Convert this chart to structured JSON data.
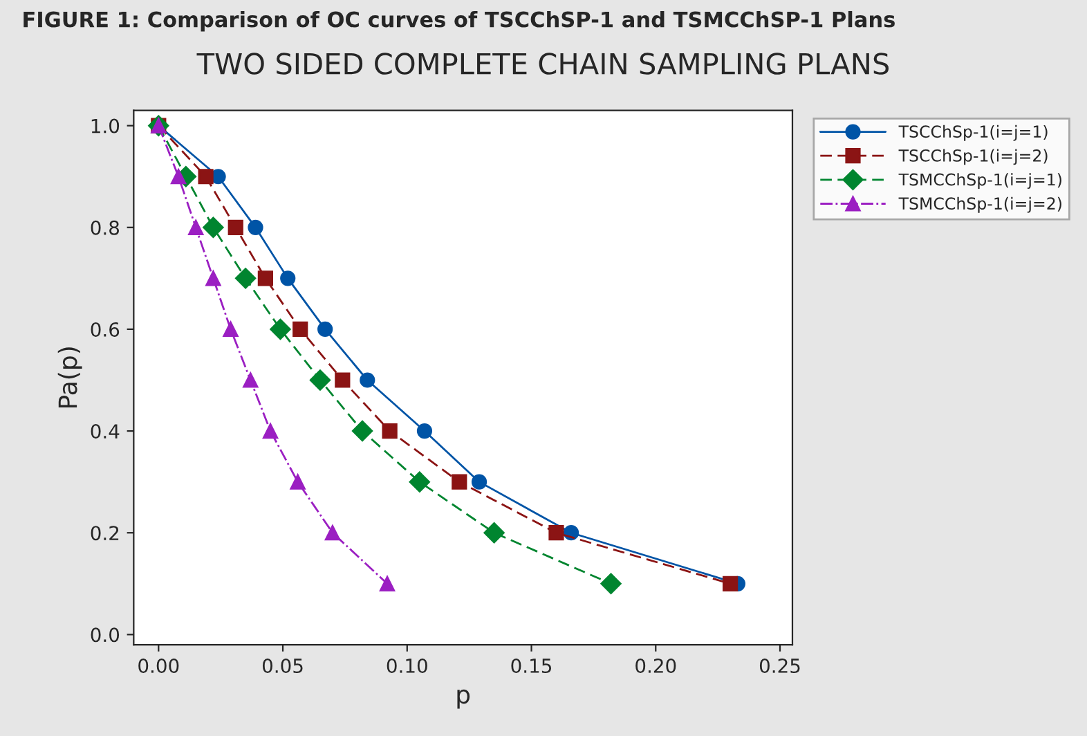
{
  "chart_data": {
    "type": "line",
    "title": "TWO SIDED COMPLETE CHAIN SAMPLING PLANS",
    "annotations": [
      "FIGURE 1: Comparison of OC curves of TSCChSP-1 and TSMCChSP-1 Plans"
    ],
    "xlabel": "p",
    "ylabel": "Pa(p)",
    "series": [
      {
        "name": "TSCChSp-1(i=j=1)",
        "color": "#0054a6",
        "marker": "circle",
        "line_style": "solid",
        "x": [
          0,
          0.024,
          0.039,
          0.052,
          0.067,
          0.084,
          0.107,
          0.129,
          0.166,
          0.233
        ],
        "values": [
          1.0,
          0.9,
          0.8,
          0.7,
          0.6,
          0.5,
          0.4,
          0.3,
          0.2,
          0.1
        ]
      },
      {
        "name": "TSCChSp-1(i=j=2)",
        "color": "#8b1414",
        "marker": "square",
        "line_style": "dashed",
        "x": [
          0,
          0.019,
          0.031,
          0.043,
          0.057,
          0.074,
          0.093,
          0.121,
          0.16,
          0.23
        ],
        "values": [
          1.0,
          0.9,
          0.8,
          0.7,
          0.6,
          0.5,
          0.4,
          0.3,
          0.2,
          0.1
        ]
      },
      {
        "name": "TSMCChSp-1(i=j=1)",
        "color": "#00852f",
        "marker": "diamond",
        "line_style": "dashed",
        "x": [
          0,
          0.011,
          0.022,
          0.035,
          0.049,
          0.065,
          0.082,
          0.105,
          0.135,
          0.182
        ],
        "values": [
          1.0,
          0.9,
          0.8,
          0.7,
          0.6,
          0.5,
          0.4,
          0.3,
          0.2,
          0.1
        ]
      },
      {
        "name": "TSMCChSp-1(i=j=2)",
        "color": "#9b1fc2",
        "marker": "triangle",
        "line_style": "dashdot",
        "x": [
          0,
          0.008,
          0.015,
          0.022,
          0.029,
          0.037,
          0.045,
          0.056,
          0.07,
          0.092
        ],
        "values": [
          1.0,
          0.9,
          0.8,
          0.7,
          0.6,
          0.5,
          0.4,
          0.3,
          0.2,
          0.1
        ]
      }
    ],
    "xlim": [
      -0.01,
      0.255
    ],
    "xticks": [
      {
        "value": 0,
        "label": "0.00"
      },
      0.05,
      {
        "value": 0.1,
        "label": "0.10"
      },
      0.15,
      {
        "value": 0.2,
        "label": "0.20"
      },
      0.25
    ],
    "ylim": [
      -0.02,
      1.03
    ],
    "yticks": [
      {
        "value": 0,
        "label": "0.0"
      },
      0.2,
      0.4,
      0.6,
      0.8,
      {
        "value": 1,
        "label": "1.0"
      }
    ],
    "grid": false,
    "legend": "top right"
  }
}
